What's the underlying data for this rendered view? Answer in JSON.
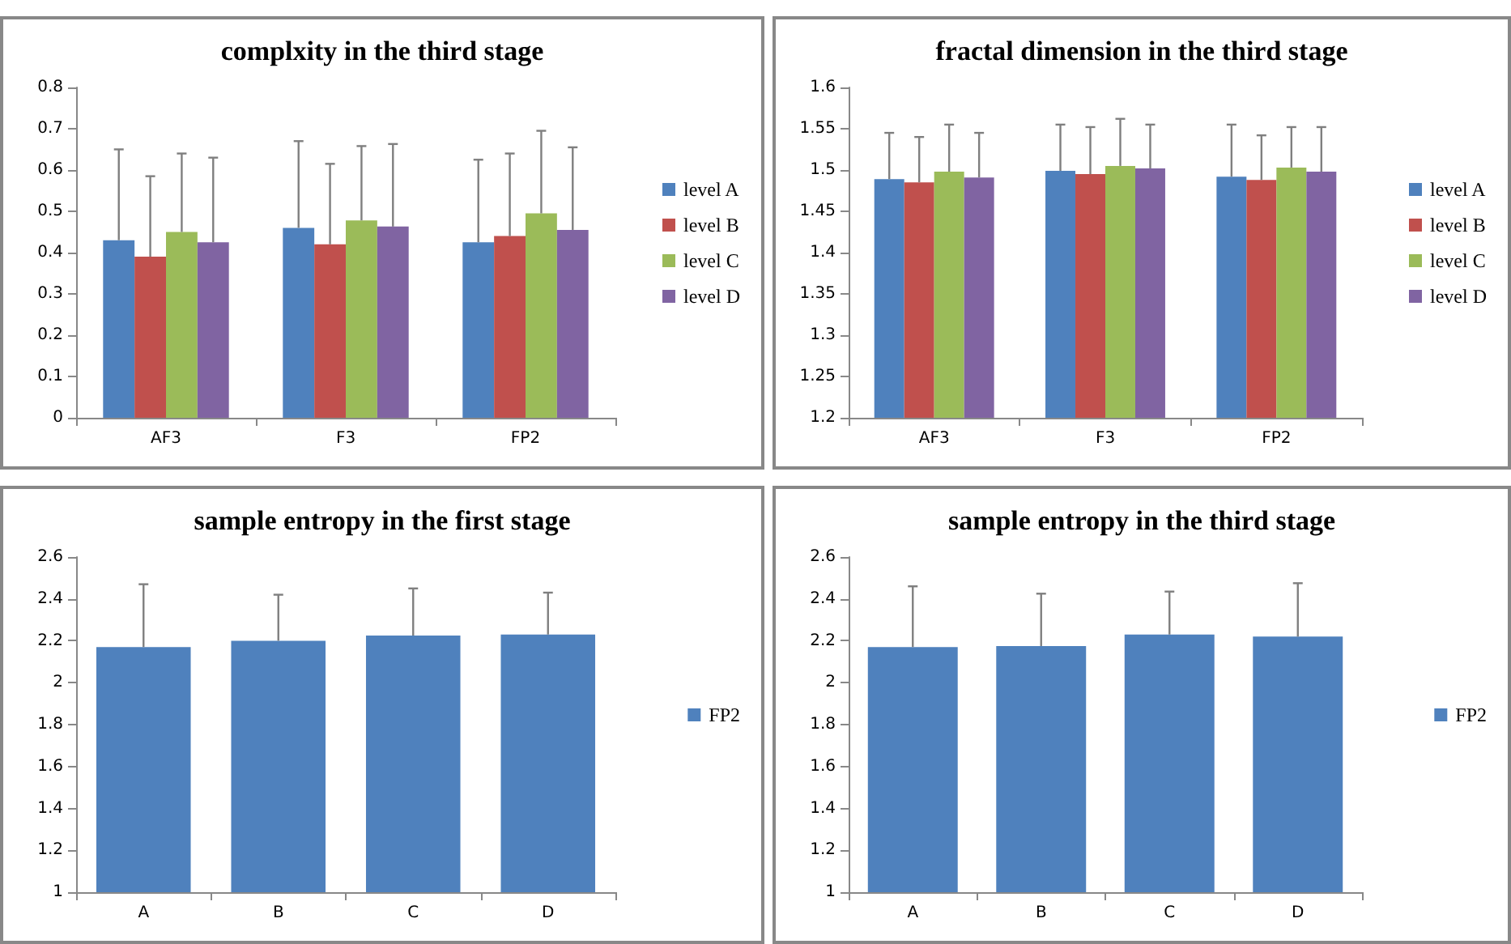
{
  "chart_data": [
    {
      "type": "bar",
      "title": "complxity in the third stage",
      "categories": [
        "AF3",
        "F3",
        "FP2"
      ],
      "ylim": [
        0,
        0.8
      ],
      "yticks": [
        0,
        0.1,
        0.2,
        0.3,
        0.4,
        0.5,
        0.6,
        0.7,
        0.8
      ],
      "grid": false,
      "legend": "right",
      "series": [
        {
          "name": "level A",
          "color": "#4f81bd",
          "values": [
            0.43,
            0.46,
            0.425
          ],
          "errors": [
            0.22,
            0.21,
            0.2
          ]
        },
        {
          "name": "level B",
          "color": "#c0504d",
          "values": [
            0.39,
            0.42,
            0.44
          ],
          "errors": [
            0.195,
            0.195,
            0.2
          ]
        },
        {
          "name": "level C",
          "color": "#9bbb59",
          "values": [
            0.45,
            0.478,
            0.495
          ],
          "errors": [
            0.19,
            0.18,
            0.2
          ]
        },
        {
          "name": "level D",
          "color": "#8064a2",
          "values": [
            0.425,
            0.463,
            0.455
          ],
          "errors": [
            0.205,
            0.2,
            0.2
          ]
        }
      ]
    },
    {
      "type": "bar",
      "title": "fractal dimension in the third stage",
      "categories": [
        "AF3",
        "F3",
        "FP2"
      ],
      "ylim": [
        1.2,
        1.6
      ],
      "yticks": [
        1.2,
        1.25,
        1.3,
        1.35,
        1.4,
        1.45,
        1.5,
        1.55,
        1.6
      ],
      "grid": false,
      "legend": "right",
      "series": [
        {
          "name": "level A",
          "color": "#4f81bd",
          "values": [
            1.489,
            1.499,
            1.492
          ],
          "errors": [
            0.056,
            0.056,
            0.063
          ]
        },
        {
          "name": "level B",
          "color": "#c0504d",
          "values": [
            1.485,
            1.495,
            1.488
          ],
          "errors": [
            0.055,
            0.057,
            0.054
          ]
        },
        {
          "name": "level C",
          "color": "#9bbb59",
          "values": [
            1.498,
            1.505,
            1.503
          ],
          "errors": [
            0.057,
            0.057,
            0.049
          ]
        },
        {
          "name": "level D",
          "color": "#8064a2",
          "values": [
            1.491,
            1.502,
            1.498
          ],
          "errors": [
            0.054,
            0.053,
            0.054
          ]
        }
      ]
    },
    {
      "type": "bar",
      "title": "sample entropy in the first stage",
      "categories": [
        "A",
        "B",
        "C",
        "D"
      ],
      "ylim": [
        1,
        2.6
      ],
      "yticks": [
        1,
        1.2,
        1.4,
        1.6,
        1.8,
        2,
        2.2,
        2.4,
        2.6
      ],
      "grid": false,
      "legend": "right",
      "series": [
        {
          "name": "FP2",
          "color": "#4f81bd",
          "values": [
            2.17,
            2.2,
            2.225,
            2.23
          ],
          "errors": [
            0.3,
            0.22,
            0.225,
            0.2
          ]
        }
      ]
    },
    {
      "type": "bar",
      "title": "sample entropy in the third stage",
      "categories": [
        "A",
        "B",
        "C",
        "D"
      ],
      "ylim": [
        1,
        2.6
      ],
      "yticks": [
        1,
        1.2,
        1.4,
        1.6,
        1.8,
        2,
        2.2,
        2.4,
        2.6
      ],
      "grid": false,
      "legend": "right",
      "series": [
        {
          "name": "FP2",
          "color": "#4f81bd",
          "values": [
            2.17,
            2.175,
            2.23,
            2.22
          ],
          "errors": [
            0.29,
            0.25,
            0.205,
            0.255
          ]
        }
      ]
    }
  ]
}
